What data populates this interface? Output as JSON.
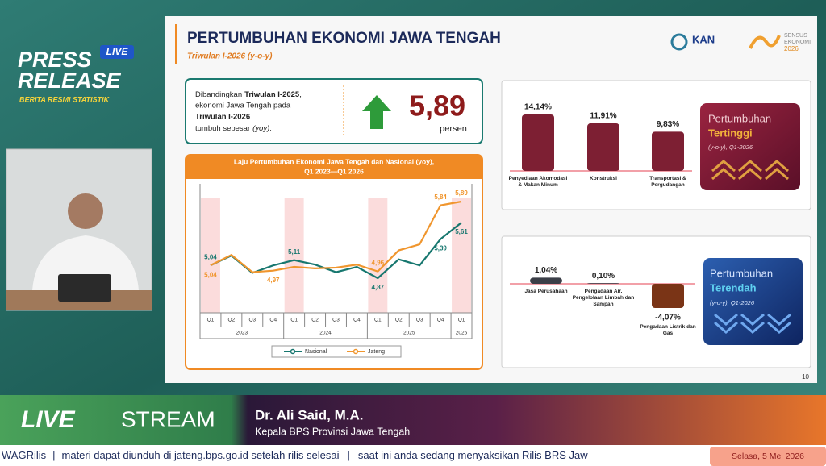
{
  "overlay": {
    "press": "PRESS",
    "release": "RELEASE",
    "badge": "LIVE",
    "tagline": "BERITA RESMI STATISTIK"
  },
  "slide": {
    "title": "PERTUMBUHAN EKONOMI JAWA TENGAH",
    "subtitle": "Triwulan I-2026 (y-o-y)",
    "logo_kan": "KAN",
    "logo_sensus": [
      "SENSUS",
      "EKONOMI",
      "2026"
    ],
    "page": "10",
    "summary": {
      "text": [
        "Dibandingkan",
        "Triwulan I-2025",
        ",",
        "ekonomi Jawa Tengah pada",
        "Triwulan I-2026",
        "tumbuh sebesar",
        "(yoy)",
        ":"
      ],
      "value": "5,89",
      "unit": "persen"
    },
    "highest": {
      "type": "bar",
      "categories": [
        "Penyediaan Akomodasi & Makan Minum",
        "Konstruksi",
        "Transportasi & Pergudangan"
      ],
      "values": [
        14.14,
        11.91,
        9.83
      ],
      "value_labels": [
        "14,14%",
        "11,91%",
        "9,83%"
      ],
      "color": "#7d1f33",
      "badge": [
        "Pertumbuhan",
        "Tertinggi",
        "(y-o-y), Q1-2026"
      ]
    },
    "lowest": {
      "type": "bar",
      "categories": [
        "Jasa Perusahaan",
        "Pengadaan Air, Pengelolaan Limbah dan Sampah",
        "Pengadaan Listrik dan Gas"
      ],
      "values": [
        1.04,
        0.1,
        -4.07
      ],
      "value_labels": [
        "1,04%",
        "0,10%",
        "-4,07%"
      ],
      "colors": [
        "#3b3f48",
        "#2f3440",
        "#7a3416"
      ],
      "badge": [
        "Pertumbuhan",
        "Terendah",
        "(y-o-y), Q1-2026"
      ]
    }
  },
  "chart_data": {
    "type": "line",
    "title": [
      "Laju Pertumbuhan Ekonomi Jawa Tengah dan Nasional (yoy),",
      "Q1 2023—Q1 2026"
    ],
    "categories": [
      "Q1",
      "Q2",
      "Q3",
      "Q4",
      "Q1",
      "Q2",
      "Q3",
      "Q4",
      "Q1",
      "Q2",
      "Q3",
      "Q4",
      "Q1"
    ],
    "groups": [
      "2023",
      "2024",
      "2025",
      "2026"
    ],
    "series": [
      {
        "name": "Nasional",
        "color": "#17776f",
        "values": [
          5.04,
          5.17,
          4.94,
          5.04,
          5.11,
          5.05,
          4.95,
          5.02,
          4.87,
          5.12,
          5.04,
          5.39,
          5.61
        ],
        "value_labels": [
          "5,04",
          null,
          null,
          null,
          "5,11",
          null,
          null,
          null,
          "4,87",
          null,
          null,
          "5,39",
          "5,61"
        ]
      },
      {
        "name": "Jateng",
        "color": "#f0962e",
        "values": [
          5.04,
          5.18,
          4.95,
          4.97,
          5.02,
          5.0,
          5.01,
          5.05,
          4.96,
          5.24,
          5.32,
          5.84,
          5.89
        ],
        "value_labels": [
          "5,04",
          null,
          null,
          "4,97",
          null,
          null,
          null,
          null,
          "4,96",
          null,
          null,
          "5,84",
          "5,89"
        ]
      }
    ]
  },
  "lower_third": {
    "live": "LIVE",
    "stream": "STREAM",
    "name": "Dr. Ali Said, M.A.",
    "role": "Kepala BPS Provinsi Jawa Tengah"
  },
  "ticker": {
    "items": [
      "WAGRilis",
      "materi dapat diunduh di jateng.bps.go.id setelah rilis selesai",
      "saat ini anda sedang menyaksikan Rilis BRS Jaw"
    ],
    "separator": "|",
    "date": "Selasa, 5 Mei 2026"
  }
}
